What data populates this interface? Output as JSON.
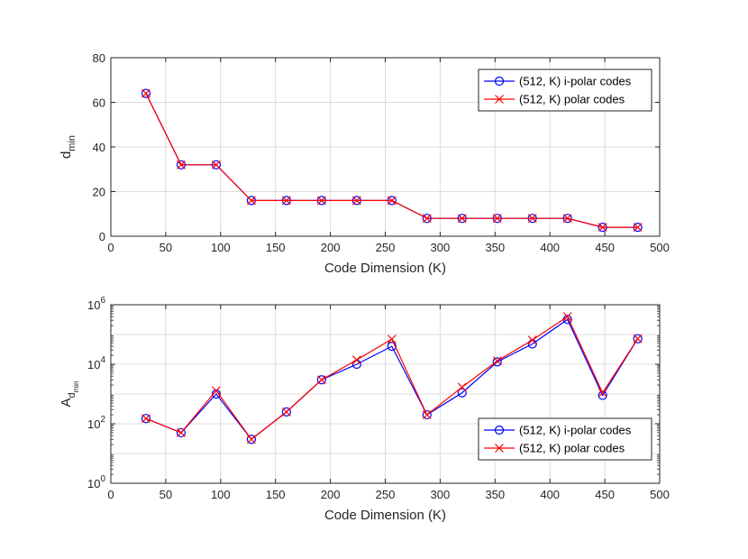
{
  "chart_data": [
    {
      "type": "line",
      "title": "",
      "xlabel": "Code Dimension (K)",
      "ylabel": {
        "main": "d",
        "sub": "min"
      },
      "xlim": [
        0,
        500
      ],
      "ylim": [
        0,
        80
      ],
      "yscale": "linear",
      "xticks": [
        "0",
        "50",
        "100",
        "150",
        "200",
        "250",
        "300",
        "350",
        "400",
        "450",
        "500"
      ],
      "yticks": [
        "0",
        "20",
        "40",
        "60",
        "80"
      ],
      "grid": true,
      "legend": "top-right",
      "x": [
        32,
        64,
        96,
        128,
        160,
        192,
        224,
        256,
        288,
        320,
        352,
        384,
        416,
        448,
        480
      ],
      "series": [
        {
          "name": "(512, K) i-polar codes",
          "color": "#0000ff",
          "marker": "circle",
          "values": [
            64,
            32,
            32,
            16,
            16,
            16,
            16,
            16,
            8,
            8,
            8,
            8,
            8,
            4,
            4
          ]
        },
        {
          "name": "(512, K) polar codes",
          "color": "#ff0000",
          "marker": "x",
          "values": [
            64,
            32,
            32,
            16,
            16,
            16,
            16,
            16,
            8,
            8,
            8,
            8,
            8,
            4,
            4
          ]
        }
      ]
    },
    {
      "type": "line",
      "title": "",
      "xlabel": "Code Dimension (K)",
      "ylabel": {
        "main": "A",
        "sub": "d",
        "subsub": "min"
      },
      "xlim": [
        0,
        500
      ],
      "ylim": [
        1,
        1000000
      ],
      "yscale": "log",
      "xticks": [
        "0",
        "50",
        "100",
        "150",
        "200",
        "250",
        "300",
        "350",
        "400",
        "450",
        "500"
      ],
      "yticks": [
        {
          "value": 1,
          "base": "10",
          "exp": "0"
        },
        {
          "value": 100,
          "base": "10",
          "exp": "2"
        },
        {
          "value": 10000,
          "base": "10",
          "exp": "4"
        },
        {
          "value": 1000000,
          "base": "10",
          "exp": "6"
        }
      ],
      "grid": true,
      "legend": "bottom-right",
      "x": [
        32,
        64,
        96,
        128,
        160,
        192,
        224,
        256,
        288,
        320,
        352,
        384,
        416,
        448,
        480
      ],
      "series": [
        {
          "name": "(512, K) i-polar codes",
          "color": "#0000ff",
          "marker": "circle",
          "values": [
            150,
            50,
            1000,
            30,
            250,
            3000,
            10000,
            40000,
            200,
            1100,
            12000,
            48000,
            320000,
            900,
            72000
          ]
        },
        {
          "name": "(512, K) polar codes",
          "color": "#ff0000",
          "marker": "x",
          "values": [
            150,
            50,
            1300,
            30,
            250,
            3000,
            14000,
            70000,
            200,
            1700,
            13000,
            65000,
            400000,
            1100,
            72000
          ]
        }
      ]
    }
  ]
}
